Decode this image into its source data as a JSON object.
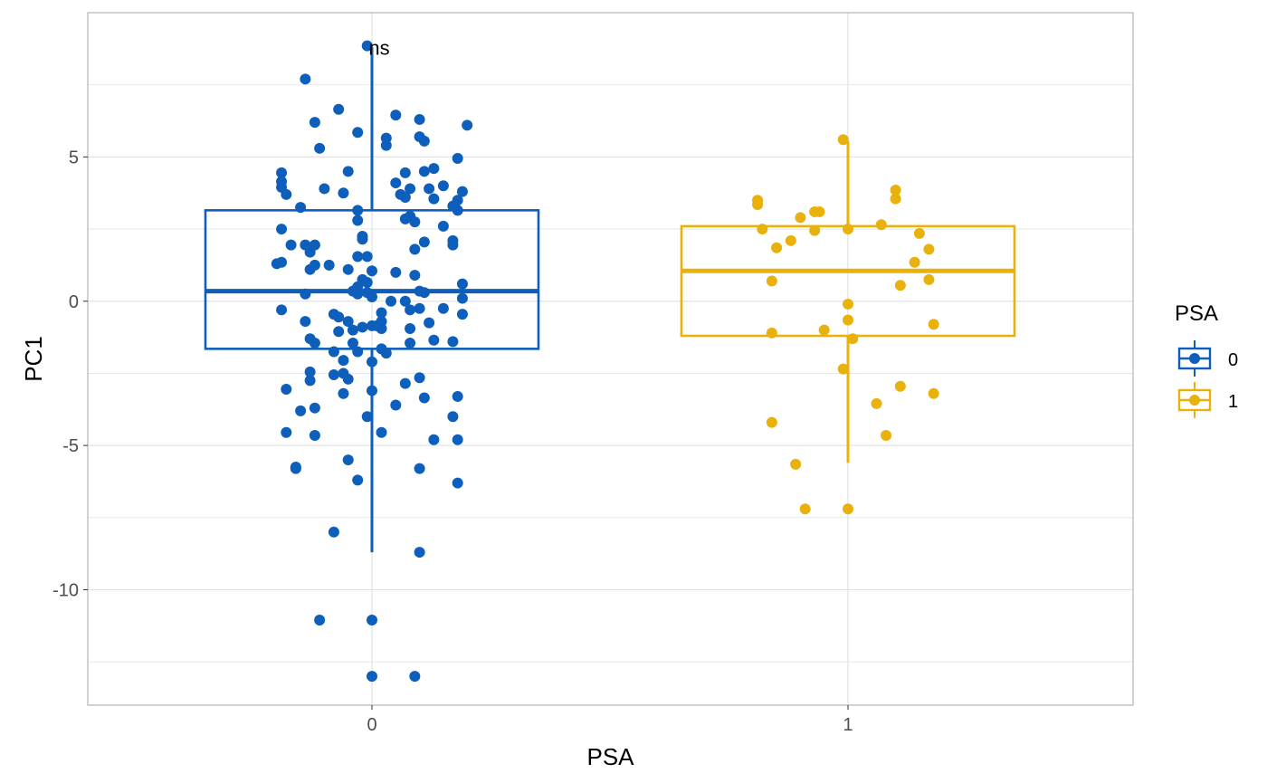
{
  "chart_data": {
    "type": "box",
    "xlabel": "PSA",
    "ylabel": "PC1",
    "categories": [
      "0",
      "1"
    ],
    "ylim": [
      -14,
      10
    ],
    "yticks": [
      5,
      0,
      -5,
      -10
    ],
    "ytick_labels": [
      "5",
      "0",
      "-5",
      "-10"
    ],
    "grid": true,
    "annotation": "ns",
    "legend": {
      "title": "PSA",
      "position": "right",
      "entries": [
        "0",
        "1"
      ]
    },
    "colors": {
      "0": "#0E5FBB",
      "1": "#E8B10C",
      "grid": "#E3E3E3",
      "border": "#B3B3B3"
    },
    "series": [
      {
        "category": "0",
        "box": {
          "whisker_low": -8.7,
          "q1": -1.65,
          "median": 0.35,
          "q3": 3.15,
          "whisker_high": 8.8
        },
        "points": [
          {
            "x": -0.01,
            "y": 8.85
          },
          {
            "x": -0.14,
            "y": 7.7
          },
          {
            "x": -0.07,
            "y": 6.65
          },
          {
            "x": -0.12,
            "y": 6.2
          },
          {
            "x": 0.05,
            "y": 6.45
          },
          {
            "x": 0.1,
            "y": 6.3
          },
          {
            "x": 0.2,
            "y": 6.1
          },
          {
            "x": -0.03,
            "y": 5.85
          },
          {
            "x": -0.11,
            "y": 5.3
          },
          {
            "x": 0.03,
            "y": 5.65
          },
          {
            "x": 0.1,
            "y": 5.7
          },
          {
            "x": 0.11,
            "y": 5.55
          },
          {
            "x": 0.03,
            "y": 5.4
          },
          {
            "x": 0.18,
            "y": 4.95
          },
          {
            "x": -0.19,
            "y": 4.45
          },
          {
            "x": -0.05,
            "y": 4.5
          },
          {
            "x": 0.07,
            "y": 4.45
          },
          {
            "x": 0.11,
            "y": 4.5
          },
          {
            "x": 0.13,
            "y": 4.6
          },
          {
            "x": -0.19,
            "y": 4.15
          },
          {
            "x": -0.19,
            "y": 3.95
          },
          {
            "x": -0.18,
            "y": 3.7
          },
          {
            "x": -0.1,
            "y": 3.9
          },
          {
            "x": -0.06,
            "y": 3.75
          },
          {
            "x": 0.05,
            "y": 4.1
          },
          {
            "x": 0.08,
            "y": 3.9
          },
          {
            "x": 0.06,
            "y": 3.7
          },
          {
            "x": 0.07,
            "y": 3.6
          },
          {
            "x": 0.12,
            "y": 3.9
          },
          {
            "x": 0.15,
            "y": 4.0
          },
          {
            "x": 0.13,
            "y": 3.55
          },
          {
            "x": 0.19,
            "y": 3.8
          },
          {
            "x": 0.18,
            "y": 3.5
          },
          {
            "x": 0.17,
            "y": 3.3
          },
          {
            "x": 0.18,
            "y": 3.15
          },
          {
            "x": -0.15,
            "y": 3.25
          },
          {
            "x": -0.03,
            "y": 3.15
          },
          {
            "x": 0.08,
            "y": 2.95
          },
          {
            "x": 0.07,
            "y": 2.85
          },
          {
            "x": 0.09,
            "y": 2.75
          },
          {
            "x": 0.15,
            "y": 2.6
          },
          {
            "x": -0.19,
            "y": 2.5
          },
          {
            "x": -0.03,
            "y": 2.8
          },
          {
            "x": -0.02,
            "y": 2.25
          },
          {
            "x": -0.02,
            "y": 2.15
          },
          {
            "x": 0.11,
            "y": 2.05
          },
          {
            "x": 0.17,
            "y": 2.1
          },
          {
            "x": 0.17,
            "y": 1.95
          },
          {
            "x": 0.09,
            "y": 1.8
          },
          {
            "x": -0.17,
            "y": 1.95
          },
          {
            "x": -0.14,
            "y": 1.95
          },
          {
            "x": -0.12,
            "y": 1.95
          },
          {
            "x": -0.13,
            "y": 1.7
          },
          {
            "x": -0.03,
            "y": 1.55
          },
          {
            "x": -0.01,
            "y": 1.55
          },
          {
            "x": -0.2,
            "y": 1.3
          },
          {
            "x": -0.19,
            "y": 1.35
          },
          {
            "x": -0.12,
            "y": 1.25
          },
          {
            "x": -0.13,
            "y": 1.1
          },
          {
            "x": -0.09,
            "y": 1.25
          },
          {
            "x": -0.05,
            "y": 1.1
          },
          {
            "x": 0.0,
            "y": 1.05
          },
          {
            "x": 0.05,
            "y": 1.0
          },
          {
            "x": 0.09,
            "y": 0.9
          },
          {
            "x": -0.02,
            "y": 0.75
          },
          {
            "x": -0.01,
            "y": 0.65
          },
          {
            "x": 0.19,
            "y": 0.6
          },
          {
            "x": -0.03,
            "y": 0.5
          },
          {
            "x": -0.04,
            "y": 0.35
          },
          {
            "x": -0.03,
            "y": 0.25
          },
          {
            "x": -0.01,
            "y": 0.3
          },
          {
            "x": 0.0,
            "y": 0.15
          },
          {
            "x": 0.1,
            "y": 0.35
          },
          {
            "x": 0.11,
            "y": 0.3
          },
          {
            "x": 0.19,
            "y": 0.1
          },
          {
            "x": -0.14,
            "y": 0.25
          },
          {
            "x": 0.04,
            "y": 0.0
          },
          {
            "x": 0.07,
            "y": 0.0
          },
          {
            "x": -0.19,
            "y": -0.3
          },
          {
            "x": 0.02,
            "y": -0.4
          },
          {
            "x": 0.08,
            "y": -0.3
          },
          {
            "x": 0.1,
            "y": -0.25
          },
          {
            "x": 0.15,
            "y": -0.25
          },
          {
            "x": 0.19,
            "y": -0.45
          },
          {
            "x": -0.08,
            "y": -0.45
          },
          {
            "x": -0.07,
            "y": -0.55
          },
          {
            "x": -0.05,
            "y": -0.7
          },
          {
            "x": -0.14,
            "y": -0.7
          },
          {
            "x": 0.02,
            "y": -0.7
          },
          {
            "x": 0.0,
            "y": -0.85
          },
          {
            "x": -0.02,
            "y": -0.9
          },
          {
            "x": 0.01,
            "y": -0.85
          },
          {
            "x": 0.02,
            "y": -0.95
          },
          {
            "x": 0.08,
            "y": -0.95
          },
          {
            "x": 0.12,
            "y": -0.75
          },
          {
            "x": -0.07,
            "y": -1.05
          },
          {
            "x": -0.04,
            "y": -1.0
          },
          {
            "x": -0.13,
            "y": -1.3
          },
          {
            "x": -0.12,
            "y": -1.45
          },
          {
            "x": -0.08,
            "y": -1.75
          },
          {
            "x": -0.04,
            "y": -1.45
          },
          {
            "x": -0.03,
            "y": -1.75
          },
          {
            "x": 0.02,
            "y": -1.65
          },
          {
            "x": 0.03,
            "y": -1.8
          },
          {
            "x": 0.08,
            "y": -1.45
          },
          {
            "x": 0.13,
            "y": -1.35
          },
          {
            "x": 0.17,
            "y": -1.4
          },
          {
            "x": -0.06,
            "y": -2.05
          },
          {
            "x": 0.0,
            "y": -2.1
          },
          {
            "x": -0.13,
            "y": -2.45
          },
          {
            "x": -0.08,
            "y": -2.55
          },
          {
            "x": -0.06,
            "y": -2.5
          },
          {
            "x": -0.05,
            "y": -2.7
          },
          {
            "x": -0.13,
            "y": -2.75
          },
          {
            "x": 0.1,
            "y": -2.65
          },
          {
            "x": 0.07,
            "y": -2.85
          },
          {
            "x": -0.18,
            "y": -3.05
          },
          {
            "x": -0.06,
            "y": -3.2
          },
          {
            "x": 0.0,
            "y": -3.1
          },
          {
            "x": 0.11,
            "y": -3.35
          },
          {
            "x": 0.18,
            "y": -3.3
          },
          {
            "x": -0.15,
            "y": -3.8
          },
          {
            "x": -0.12,
            "y": -3.7
          },
          {
            "x": 0.05,
            "y": -3.6
          },
          {
            "x": -0.01,
            "y": -4.0
          },
          {
            "x": 0.17,
            "y": -4.0
          },
          {
            "x": -0.18,
            "y": -4.55
          },
          {
            "x": -0.12,
            "y": -4.65
          },
          {
            "x": 0.02,
            "y": -4.55
          },
          {
            "x": 0.13,
            "y": -4.8
          },
          {
            "x": 0.18,
            "y": -4.8
          },
          {
            "x": -0.05,
            "y": -5.5
          },
          {
            "x": -0.16,
            "y": -5.75
          },
          {
            "x": -0.16,
            "y": -5.8
          },
          {
            "x": 0.1,
            "y": -5.8
          },
          {
            "x": -0.03,
            "y": -6.2
          },
          {
            "x": 0.18,
            "y": -6.3
          },
          {
            "x": -0.08,
            "y": -8.0
          },
          {
            "x": 0.1,
            "y": -8.7
          },
          {
            "x": -0.11,
            "y": -11.05
          },
          {
            "x": 0.0,
            "y": -11.05
          },
          {
            "x": 0.0,
            "y": -13.0
          },
          {
            "x": 0.09,
            "y": -13.0
          }
        ]
      },
      {
        "category": "1",
        "box": {
          "whisker_low": -5.6,
          "q1": -1.2,
          "median": 1.05,
          "q3": 2.6,
          "whisker_high": 5.55
        },
        "points": [
          {
            "x": -0.01,
            "y": 5.6
          },
          {
            "x": -0.19,
            "y": 3.5
          },
          {
            "x": -0.19,
            "y": 3.35
          },
          {
            "x": -0.07,
            "y": 3.1
          },
          {
            "x": -0.06,
            "y": 3.1
          },
          {
            "x": -0.1,
            "y": 2.9
          },
          {
            "x": 0.1,
            "y": 3.85
          },
          {
            "x": 0.1,
            "y": 3.55
          },
          {
            "x": -0.18,
            "y": 2.5
          },
          {
            "x": -0.07,
            "y": 2.45
          },
          {
            "x": 0.0,
            "y": 2.5
          },
          {
            "x": 0.07,
            "y": 2.65
          },
          {
            "x": 0.15,
            "y": 2.35
          },
          {
            "x": -0.12,
            "y": 2.1
          },
          {
            "x": -0.15,
            "y": 1.85
          },
          {
            "x": 0.17,
            "y": 1.8
          },
          {
            "x": 0.14,
            "y": 1.35
          },
          {
            "x": -0.16,
            "y": 0.7
          },
          {
            "x": 0.11,
            "y": 0.55
          },
          {
            "x": 0.17,
            "y": 0.75
          },
          {
            "x": 0.0,
            "y": -0.1
          },
          {
            "x": 0.0,
            "y": -0.65
          },
          {
            "x": -0.05,
            "y": -1.0
          },
          {
            "x": -0.16,
            "y": -1.1
          },
          {
            "x": 0.01,
            "y": -1.3
          },
          {
            "x": 0.18,
            "y": -0.8
          },
          {
            "x": -0.01,
            "y": -2.35
          },
          {
            "x": 0.11,
            "y": -2.95
          },
          {
            "x": 0.18,
            "y": -3.2
          },
          {
            "x": 0.06,
            "y": -3.55
          },
          {
            "x": -0.16,
            "y": -4.2
          },
          {
            "x": 0.08,
            "y": -4.65
          },
          {
            "x": -0.11,
            "y": -5.65
          },
          {
            "x": -0.09,
            "y": -7.2
          },
          {
            "x": 0.0,
            "y": -7.2
          }
        ]
      }
    ]
  }
}
